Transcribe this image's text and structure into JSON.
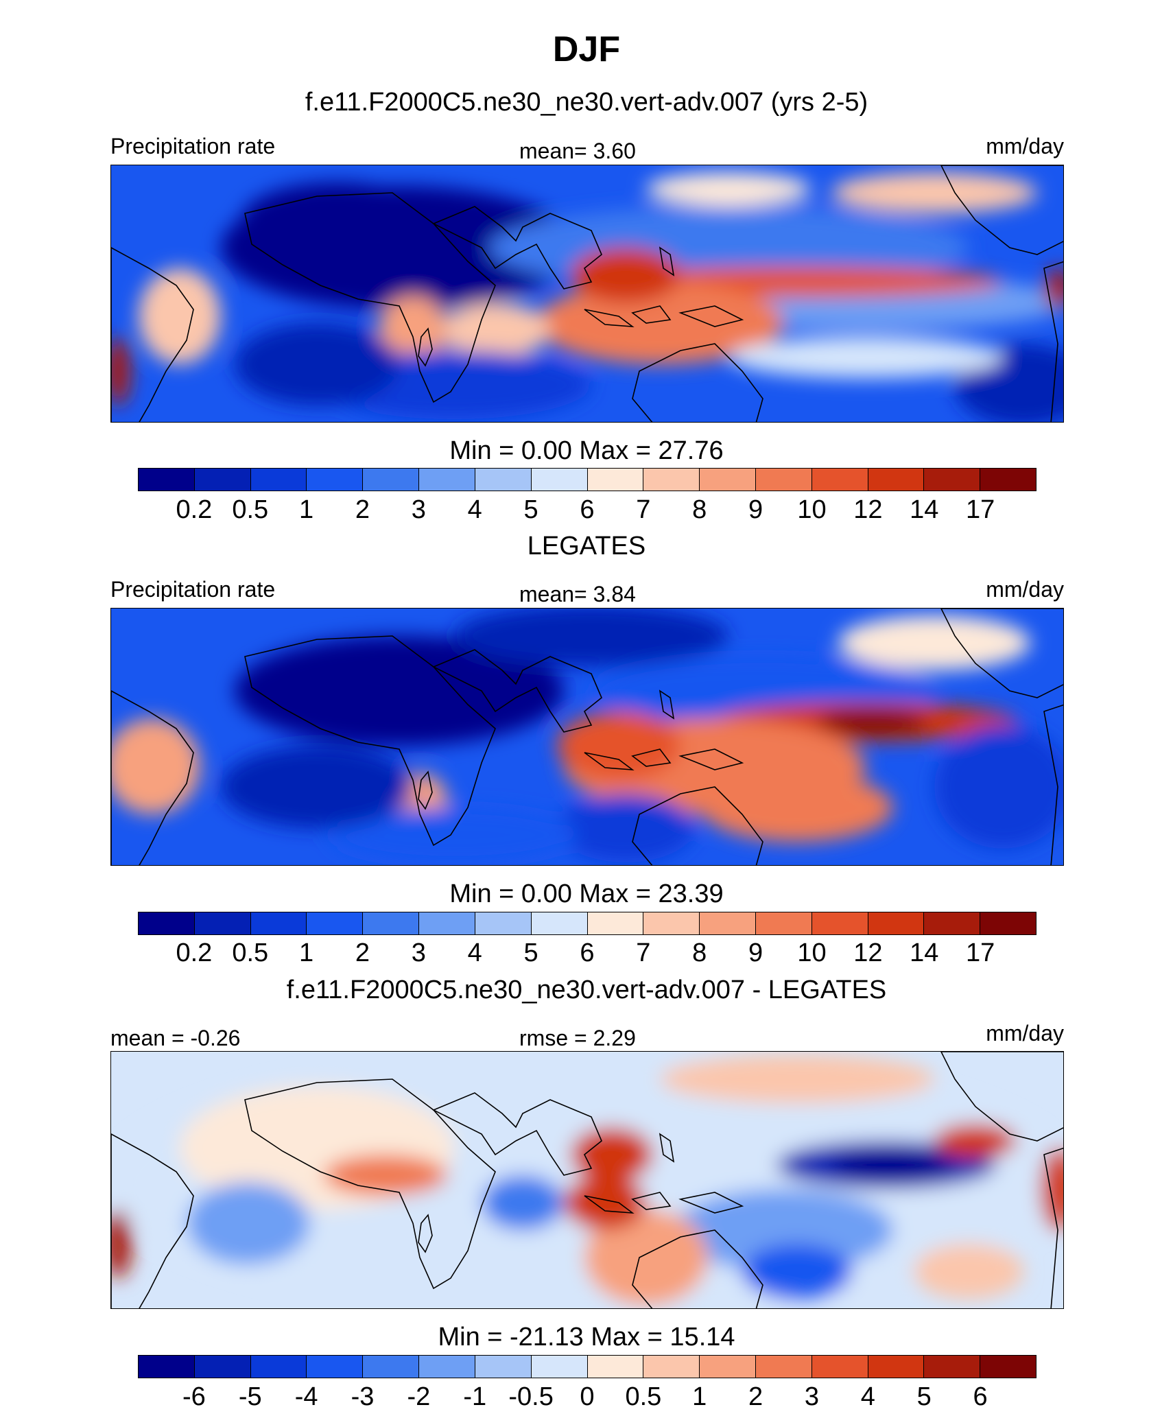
{
  "title": "DJF",
  "colors": [
    "#00008b",
    "#0420b4",
    "#0a3ad9",
    "#1957f0",
    "#3d79ef",
    "#6e9ff4",
    "#a6c5f7",
    "#d6e6fb",
    "#fde9d9",
    "#fbc6ac",
    "#f7a17e",
    "#f07a52",
    "#e5532c",
    "#d13611",
    "#a71c0b",
    "#7d0505"
  ],
  "panels": [
    {
      "title": "f.e11.F2000C5.ne30_ne30.vert-adv.007 (yrs 2-5)",
      "left_label": "Precipitation rate",
      "center_label": "mean=   3.60",
      "units": "mm/day",
      "minmax": "Min =    0.00 Max =  27.76",
      "ticks": [
        "0.2",
        "0.5",
        "1",
        "2",
        "3",
        "4",
        "5",
        "6",
        "7",
        "8",
        "9",
        "10",
        "12",
        "14",
        "17"
      ]
    },
    {
      "title": "LEGATES",
      "left_label": "Precipitation rate",
      "center_label": "mean=   3.84",
      "units": "mm/day",
      "minmax": "Min =    0.00 Max =  23.39",
      "ticks": [
        "0.2",
        "0.5",
        "1",
        "2",
        "3",
        "4",
        "5",
        "6",
        "7",
        "8",
        "9",
        "10",
        "12",
        "14",
        "17"
      ]
    },
    {
      "title": "f.e11.F2000C5.ne30_ne30.vert-adv.007 - LEGATES",
      "left_label": "mean =  -0.26",
      "center_label": "rmse =   2.29",
      "units": "mm/day",
      "minmax": "Min = -21.13 Max =  15.14",
      "ticks": [
        "-6",
        "-5",
        "-4",
        "-3",
        "-2",
        "-1",
        "-0.5",
        "0",
        "0.5",
        "1",
        "2",
        "3",
        "4",
        "5",
        "6"
      ]
    }
  ],
  "chart_data": [
    {
      "type": "heatmap",
      "title": "f.e11.F2000C5.ne30_ne30.vert-adv.007 (yrs 2-5)",
      "variable": "Precipitation rate",
      "units": "mm/day",
      "mean": 3.6,
      "min": 0.0,
      "max": 27.76,
      "levels": [
        0.2,
        0.5,
        1,
        2,
        3,
        4,
        5,
        6,
        7,
        8,
        9,
        10,
        12,
        14,
        17
      ]
    },
    {
      "type": "heatmap",
      "title": "LEGATES",
      "variable": "Precipitation rate",
      "units": "mm/day",
      "mean": 3.84,
      "min": 0.0,
      "max": 23.39,
      "levels": [
        0.2,
        0.5,
        1,
        2,
        3,
        4,
        5,
        6,
        7,
        8,
        9,
        10,
        12,
        14,
        17
      ]
    },
    {
      "type": "heatmap",
      "title": "f.e11.F2000C5.ne30_ne30.vert-adv.007 - LEGATES",
      "units": "mm/day",
      "mean": -0.26,
      "rmse": 2.29,
      "min": -21.13,
      "max": 15.14,
      "levels": [
        -6,
        -5,
        -4,
        -3,
        -2,
        -1,
        -0.5,
        0,
        0.5,
        1,
        2,
        3,
        4,
        5,
        6
      ]
    }
  ]
}
